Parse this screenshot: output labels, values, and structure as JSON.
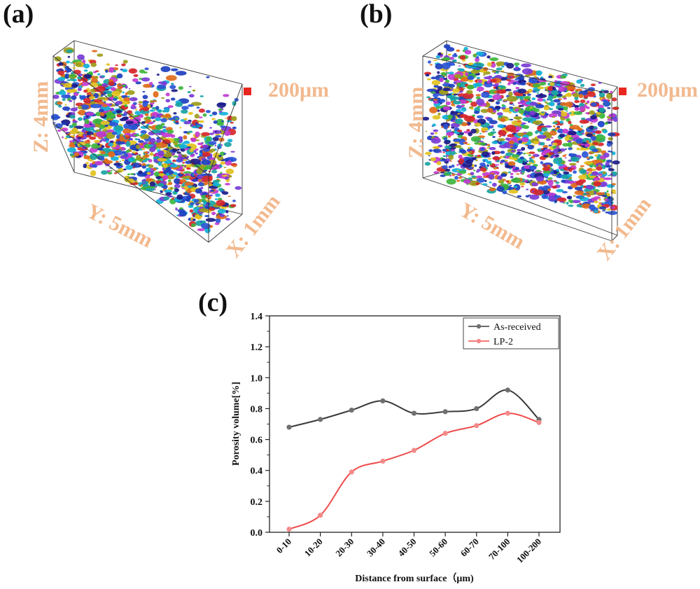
{
  "panels": [
    {
      "letter": "(a)",
      "z_label": "Z: 4mm",
      "y_label": "Y: 5mm",
      "x_label": "X: 1mm",
      "scale_label": "200μm"
    },
    {
      "letter": "(b)",
      "z_label": "Z: 4mm",
      "y_label": "Y: 5mm",
      "x_label": "X: 1mm",
      "scale_label": "200μm"
    }
  ],
  "chart_letter": "(c)",
  "colors": {
    "annotation": "#f2b98e",
    "scale_marker": "#e8261f",
    "as_received": "#3a3a3a",
    "lp2": "#ef4b4b"
  },
  "chart_data": {
    "type": "line",
    "title": "",
    "xlabel": "Distance from surface（μm)",
    "ylabel": "Porosity volume[%]",
    "categories": [
      "0-10",
      "10-20",
      "20-30",
      "30-40",
      "40-50",
      "50-60",
      "60-70",
      "70-100",
      "100-200"
    ],
    "ylim": [
      0.0,
      1.4
    ],
    "yticks": [
      "0.0",
      "0.2",
      "0.4",
      "0.6",
      "0.8",
      "1.0",
      "1.2",
      "1.4"
    ],
    "grid": false,
    "legend_position": "top-right",
    "series": [
      {
        "name": "As-received",
        "values": [
          0.68,
          0.73,
          0.79,
          0.85,
          0.77,
          0.78,
          0.8,
          0.92,
          0.73
        ]
      },
      {
        "name": "LP-2",
        "values": [
          0.02,
          0.11,
          0.39,
          0.46,
          0.53,
          0.64,
          0.69,
          0.77,
          0.71
        ]
      }
    ]
  }
}
